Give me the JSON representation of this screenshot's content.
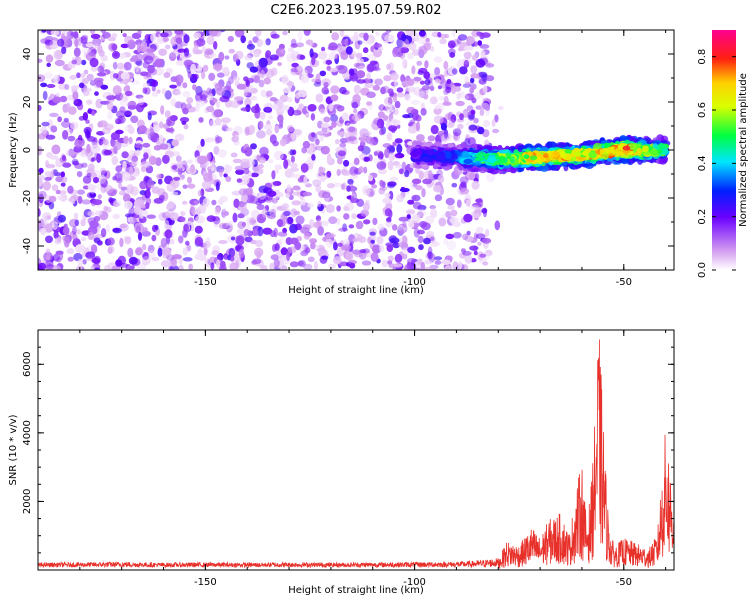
{
  "title": "C2E6.2023.195.07.59.R02",
  "colors": {
    "snr_line": "#e8302a",
    "frame": "#000000",
    "background": "#ffffff"
  },
  "chart_data": [
    {
      "type": "heatmap",
      "title": "C2E6.2023.195.07.59.R02",
      "xlabel": "Height of straight line (km)",
      "ylabel": "Frequency (Hz)",
      "xlim": [
        -190,
        -38
      ],
      "ylim": [
        -50,
        50
      ],
      "xticks": [
        -150,
        -100,
        -50
      ],
      "yticks": [
        -40,
        -20,
        0,
        20,
        40
      ],
      "grid": false,
      "colorbar": {
        "label": "Normalized spectral amplitude",
        "range": [
          0,
          0.9
        ],
        "ticks": [
          "0.0",
          "0.2",
          "0.4",
          "0.6",
          "0.8"
        ],
        "colormap": "rainbow (white-purple-blue-cyan-green-yellow-red-magenta)"
      },
      "noise_region": {
        "x": [
          -190,
          -82
        ],
        "y": [
          -50,
          50
        ],
        "amplitude": [
          0.02,
          0.12
        ]
      },
      "signal_track": {
        "x": [
          -100,
          -90,
          -80,
          -70,
          -60,
          -50,
          -40
        ],
        "frequency": [
          -2,
          -3,
          -4,
          -3,
          -2,
          0,
          0
        ],
        "peak_amplitude": [
          0.25,
          0.35,
          0.6,
          0.75,
          0.7,
          0.85,
          0.5
        ]
      }
    },
    {
      "type": "line",
      "title": "",
      "xlabel": "Height of straight line (km)",
      "ylabel": "SNR (10 * v/v)",
      "xlim": [
        -190,
        -38
      ],
      "ylim": [
        0,
        7000
      ],
      "xticks": [
        -150,
        -100,
        -50
      ],
      "yticks": [
        2000,
        4000,
        6000
      ],
      "grid": false,
      "series": [
        {
          "x": [
            -190,
            -180,
            -170,
            -160,
            -150,
            -140,
            -130,
            -120,
            -110,
            -100,
            -90,
            -85,
            -80,
            -78,
            -75,
            -72,
            -70,
            -68,
            -65,
            -63,
            -61,
            -60,
            -59,
            -58,
            -57,
            -56,
            -55,
            -54,
            -53,
            -52,
            -50,
            -48,
            -46,
            -44,
            -42,
            -40,
            -38
          ],
          "values": [
            150,
            160,
            180,
            150,
            160,
            150,
            160,
            150,
            160,
            170,
            180,
            220,
            300,
            800,
            700,
            1200,
            900,
            1400,
            1600,
            1000,
            2500,
            3000,
            1500,
            2000,
            4000,
            6900,
            4500,
            2000,
            900,
            700,
            900,
            800,
            700,
            600,
            1000,
            4000,
            2000
          ]
        }
      ]
    }
  ]
}
